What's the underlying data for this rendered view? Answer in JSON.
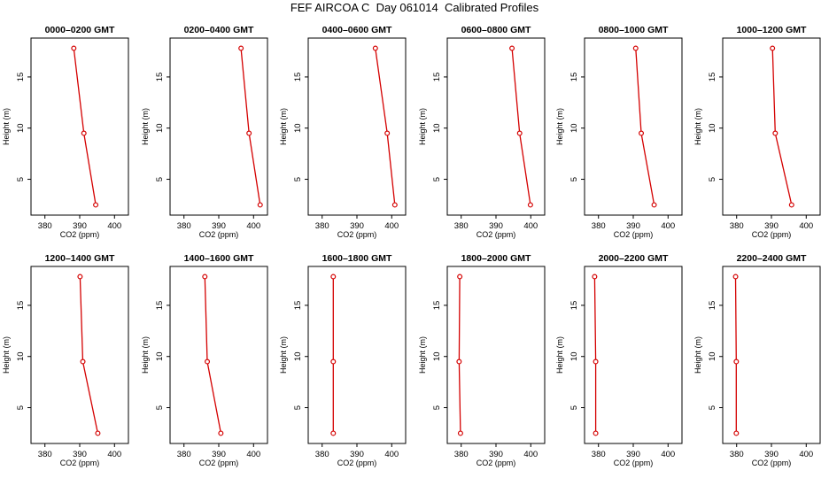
{
  "title": "FEF AIRCOA C  Day 061014  Calibrated Profiles",
  "chart_data": [
    {
      "type": "line",
      "title": "0000–0200 GMT",
      "xlabel": "CO2 (ppm)",
      "ylabel": "Height (m)",
      "xlim": [
        376,
        404
      ],
      "ylim": [
        1.5,
        18.8
      ],
      "xticks": [
        "380",
        "390",
        "400"
      ],
      "yticks": [
        "5",
        "10",
        "15"
      ],
      "grid": false,
      "color": "#d40000",
      "series": [
        {
          "x": [
            388.3,
            391.2,
            394.6
          ],
          "y": [
            17.8,
            9.5,
            2.5
          ]
        }
      ]
    },
    {
      "type": "line",
      "title": "0200–0400 GMT",
      "xlabel": "CO2 (ppm)",
      "ylabel": "Height (m)",
      "xlim": [
        376,
        404
      ],
      "ylim": [
        1.5,
        18.8
      ],
      "xticks": [
        "380",
        "390",
        "400"
      ],
      "yticks": [
        "5",
        "10",
        "15"
      ],
      "grid": false,
      "color": "#d40000",
      "series": [
        {
          "x": [
            396.4,
            398.7,
            401.9
          ],
          "y": [
            17.8,
            9.5,
            2.5
          ]
        }
      ]
    },
    {
      "type": "line",
      "title": "0400–0600 GMT",
      "xlabel": "CO2 (ppm)",
      "ylabel": "Height (m)",
      "xlim": [
        376,
        404
      ],
      "ylim": [
        1.5,
        18.8
      ],
      "xticks": [
        "380",
        "390",
        "400"
      ],
      "yticks": [
        "5",
        "10",
        "15"
      ],
      "grid": false,
      "color": "#d40000",
      "series": [
        {
          "x": [
            395.3,
            398.7,
            400.9
          ],
          "y": [
            17.8,
            9.5,
            2.5
          ]
        }
      ]
    },
    {
      "type": "line",
      "title": "0600–0800 GMT",
      "xlabel": "CO2 (ppm)",
      "ylabel": "Height (m)",
      "xlim": [
        376,
        404
      ],
      "ylim": [
        1.5,
        18.8
      ],
      "xticks": [
        "380",
        "390",
        "400"
      ],
      "yticks": [
        "5",
        "10",
        "15"
      ],
      "grid": false,
      "color": "#d40000",
      "series": [
        {
          "x": [
            394.6,
            396.8,
            399.9
          ],
          "y": [
            17.8,
            9.5,
            2.5
          ]
        }
      ]
    },
    {
      "type": "line",
      "title": "0800–1000 GMT",
      "xlabel": "CO2 (ppm)",
      "ylabel": "Height (m)",
      "xlim": [
        376,
        404
      ],
      "ylim": [
        1.5,
        18.8
      ],
      "xticks": [
        "380",
        "390",
        "400"
      ],
      "yticks": [
        "5",
        "10",
        "15"
      ],
      "grid": false,
      "color": "#d40000",
      "series": [
        {
          "x": [
            390.7,
            392.3,
            396.0
          ],
          "y": [
            17.8,
            9.5,
            2.5
          ]
        }
      ]
    },
    {
      "type": "line",
      "title": "1000–1200 GMT",
      "xlabel": "CO2 (ppm)",
      "ylabel": "Height (m)",
      "xlim": [
        376,
        404
      ],
      "ylim": [
        1.5,
        18.8
      ],
      "xticks": [
        "380",
        "390",
        "400"
      ],
      "yticks": [
        "5",
        "10",
        "15"
      ],
      "grid": false,
      "color": "#d40000",
      "series": [
        {
          "x": [
            390.3,
            391.1,
            395.8
          ],
          "y": [
            17.8,
            9.5,
            2.5
          ]
        }
      ]
    },
    {
      "type": "line",
      "title": "1200–1400 GMT",
      "xlabel": "CO2 (ppm)",
      "ylabel": "Height (m)",
      "xlim": [
        376,
        404
      ],
      "ylim": [
        1.5,
        18.8
      ],
      "xticks": [
        "380",
        "390",
        "400"
      ],
      "yticks": [
        "5",
        "10",
        "15"
      ],
      "grid": false,
      "color": "#d40000",
      "series": [
        {
          "x": [
            390.1,
            390.9,
            395.2
          ],
          "y": [
            17.8,
            9.5,
            2.5
          ]
        }
      ]
    },
    {
      "type": "line",
      "title": "1400–1600 GMT",
      "xlabel": "CO2 (ppm)",
      "ylabel": "Height (m)",
      "xlim": [
        376,
        404
      ],
      "ylim": [
        1.5,
        18.8
      ],
      "xticks": [
        "380",
        "390",
        "400"
      ],
      "yticks": [
        "5",
        "10",
        "15"
      ],
      "grid": false,
      "color": "#d40000",
      "series": [
        {
          "x": [
            386.0,
            386.7,
            390.6
          ],
          "y": [
            17.8,
            9.5,
            2.5
          ]
        }
      ]
    },
    {
      "type": "line",
      "title": "1600–1800 GMT",
      "xlabel": "CO2 (ppm)",
      "ylabel": "Height (m)",
      "xlim": [
        376,
        404
      ],
      "ylim": [
        1.5,
        18.8
      ],
      "xticks": [
        "380",
        "390",
        "400"
      ],
      "yticks": [
        "5",
        "10",
        "15"
      ],
      "grid": false,
      "color": "#d40000",
      "series": [
        {
          "x": [
            383.2,
            383.2,
            383.2
          ],
          "y": [
            17.8,
            9.5,
            2.5
          ]
        }
      ]
    },
    {
      "type": "line",
      "title": "1800–2000 GMT",
      "xlabel": "CO2 (ppm)",
      "ylabel": "Height (m)",
      "xlim": [
        376,
        404
      ],
      "ylim": [
        1.5,
        18.8
      ],
      "xticks": [
        "380",
        "390",
        "400"
      ],
      "yticks": [
        "5",
        "10",
        "15"
      ],
      "grid": false,
      "color": "#d40000",
      "series": [
        {
          "x": [
            379.6,
            379.4,
            379.8
          ],
          "y": [
            17.8,
            9.5,
            2.5
          ]
        }
      ]
    },
    {
      "type": "line",
      "title": "2000–2200 GMT",
      "xlabel": "CO2 (ppm)",
      "ylabel": "Height (m)",
      "xlim": [
        376,
        404
      ],
      "ylim": [
        1.5,
        18.8
      ],
      "xticks": [
        "380",
        "390",
        "400"
      ],
      "yticks": [
        "5",
        "10",
        "15"
      ],
      "grid": false,
      "color": "#d40000",
      "series": [
        {
          "x": [
            378.9,
            379.2,
            379.2
          ],
          "y": [
            17.8,
            9.5,
            2.5
          ]
        }
      ]
    },
    {
      "type": "line",
      "title": "2200–2400 GMT",
      "xlabel": "CO2 (ppm)",
      "ylabel": "Height (m)",
      "xlim": [
        376,
        404
      ],
      "ylim": [
        1.5,
        18.8
      ],
      "xticks": [
        "380",
        "390",
        "400"
      ],
      "yticks": [
        "5",
        "10",
        "15"
      ],
      "grid": false,
      "color": "#d40000",
      "series": [
        {
          "x": [
            379.7,
            379.9,
            379.9
          ],
          "y": [
            17.8,
            9.5,
            2.5
          ]
        }
      ]
    }
  ]
}
